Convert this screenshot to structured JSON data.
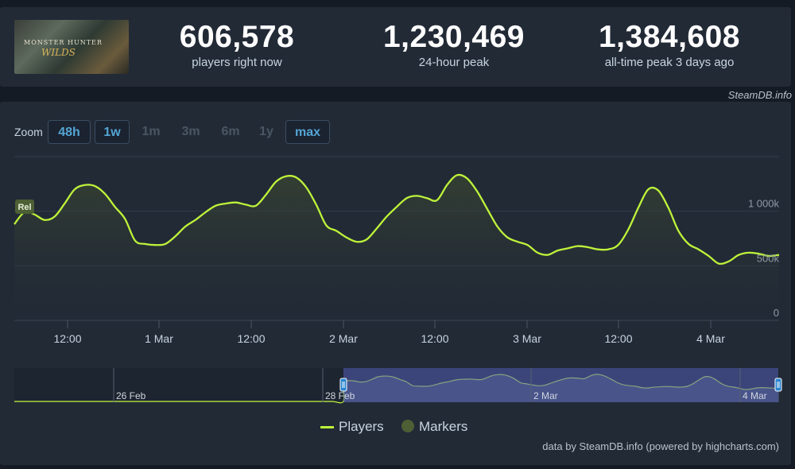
{
  "game": {
    "image_alt": "MONSTER HUNTER WILDS",
    "logo_line1": "MONSTER HUNTER",
    "logo_line2": "WILDS"
  },
  "stats": [
    {
      "value": "606,578",
      "label": "players right now"
    },
    {
      "value": "1,230,469",
      "label": "24-hour peak"
    },
    {
      "value": "1,384,608",
      "label": "all-time peak 3 days ago"
    }
  ],
  "credit_top": "SteamDB.info",
  "zoom": {
    "label": "Zoom",
    "options": [
      {
        "label": "48h",
        "active": true
      },
      {
        "label": "1w",
        "active": true
      },
      {
        "label": "1m",
        "active": false
      },
      {
        "label": "3m",
        "active": false
      },
      {
        "label": "6m",
        "active": false
      },
      {
        "label": "1y",
        "active": false
      },
      {
        "label": "max",
        "active": true
      }
    ]
  },
  "chart_data": {
    "type": "area",
    "series": [
      {
        "name": "Players",
        "color": "#bef33a",
        "points": [
          [
            "2025-02-28T03:00",
            880000
          ],
          [
            "2025-02-28T04:30",
            990000
          ],
          [
            "2025-02-28T06:00",
            970000
          ],
          [
            "2025-02-28T07:30",
            920000
          ],
          [
            "2025-02-28T09:00",
            950000
          ],
          [
            "2025-02-28T10:30",
            1070000
          ],
          [
            "2025-02-28T12:00",
            1200000
          ],
          [
            "2025-02-28T13:30",
            1240000
          ],
          [
            "2025-02-28T15:00",
            1230000
          ],
          [
            "2025-02-28T16:30",
            1160000
          ],
          [
            "2025-02-28T18:00",
            1040000
          ],
          [
            "2025-02-28T19:30",
            930000
          ],
          [
            "2025-02-28T21:00",
            730000
          ],
          [
            "2025-02-28T22:30",
            700000
          ],
          [
            "2025-03-01T00:00",
            690000
          ],
          [
            "2025-03-01T01:30",
            700000
          ],
          [
            "2025-03-01T03:00",
            770000
          ],
          [
            "2025-03-01T04:30",
            860000
          ],
          [
            "2025-03-01T06:00",
            920000
          ],
          [
            "2025-03-01T07:30",
            990000
          ],
          [
            "2025-03-01T09:00",
            1050000
          ],
          [
            "2025-03-01T10:30",
            1070000
          ],
          [
            "2025-03-01T12:00",
            1080000
          ],
          [
            "2025-03-01T13:30",
            1060000
          ],
          [
            "2025-03-01T15:00",
            1050000
          ],
          [
            "2025-03-01T16:30",
            1150000
          ],
          [
            "2025-03-01T18:00",
            1270000
          ],
          [
            "2025-03-01T19:30",
            1320000
          ],
          [
            "2025-03-01T21:00",
            1310000
          ],
          [
            "2025-03-01T22:30",
            1220000
          ],
          [
            "2025-03-02T00:00",
            1060000
          ],
          [
            "2025-03-02T01:30",
            870000
          ],
          [
            "2025-03-02T03:00",
            820000
          ],
          [
            "2025-03-02T04:30",
            760000
          ],
          [
            "2025-03-02T06:00",
            720000
          ],
          [
            "2025-03-02T07:30",
            740000
          ],
          [
            "2025-03-02T09:00",
            840000
          ],
          [
            "2025-03-02T10:30",
            950000
          ],
          [
            "2025-03-02T12:00",
            1040000
          ],
          [
            "2025-03-02T13:30",
            1120000
          ],
          [
            "2025-03-02T15:00",
            1140000
          ],
          [
            "2025-03-02T16:30",
            1120000
          ],
          [
            "2025-03-02T18:00",
            1100000
          ],
          [
            "2025-03-02T19:30",
            1240000
          ],
          [
            "2025-03-02T21:00",
            1330000
          ],
          [
            "2025-03-02T22:30",
            1300000
          ],
          [
            "2025-03-03T00:00",
            1180000
          ],
          [
            "2025-03-03T01:30",
            1020000
          ],
          [
            "2025-03-03T03:00",
            860000
          ],
          [
            "2025-03-03T04:30",
            760000
          ],
          [
            "2025-03-03T06:00",
            720000
          ],
          [
            "2025-03-03T07:30",
            690000
          ],
          [
            "2025-03-03T09:00",
            620000
          ],
          [
            "2025-03-03T10:30",
            600000
          ],
          [
            "2025-03-03T12:00",
            640000
          ],
          [
            "2025-03-03T13:30",
            660000
          ],
          [
            "2025-03-03T15:00",
            680000
          ],
          [
            "2025-03-03T16:30",
            670000
          ],
          [
            "2025-03-03T18:00",
            650000
          ],
          [
            "2025-03-03T19:30",
            650000
          ],
          [
            "2025-03-03T21:00",
            690000
          ],
          [
            "2025-03-03T22:30",
            830000
          ],
          [
            "2025-03-04T00:00",
            1030000
          ],
          [
            "2025-03-04T01:30",
            1200000
          ],
          [
            "2025-03-04T03:00",
            1190000
          ],
          [
            "2025-03-04T04:30",
            1030000
          ],
          [
            "2025-03-04T06:00",
            820000
          ],
          [
            "2025-03-04T07:30",
            700000
          ],
          [
            "2025-03-04T09:00",
            650000
          ],
          [
            "2025-03-04T10:30",
            590000
          ],
          [
            "2025-03-04T12:00",
            520000
          ],
          [
            "2025-03-04T13:30",
            540000
          ],
          [
            "2025-03-04T15:00",
            600000
          ],
          [
            "2025-03-04T16:30",
            620000
          ],
          [
            "2025-03-04T18:00",
            610000
          ],
          [
            "2025-03-04T19:30",
            590000
          ],
          [
            "2025-03-04T21:00",
            600000
          ]
        ]
      }
    ],
    "x_labels": [
      "12:00",
      "1 Mar",
      "12:00",
      "2 Mar",
      "12:00",
      "3 Mar",
      "12:00",
      "4 Mar"
    ],
    "y_ticks": [
      "0",
      "500k",
      "1 000k"
    ],
    "ylim": [
      0,
      1500000
    ],
    "grid": true,
    "marker_label": "Rel",
    "navigator_labels": [
      "26 Feb",
      "28 Feb",
      "2 Mar",
      "4 Mar"
    ],
    "legend": [
      {
        "name": "Players",
        "color": "#bef33a"
      },
      {
        "name": "Markers",
        "color": "#4d5f34"
      }
    ]
  },
  "credit_bottom": "data by SteamDB.info (powered by highcharts.com)"
}
